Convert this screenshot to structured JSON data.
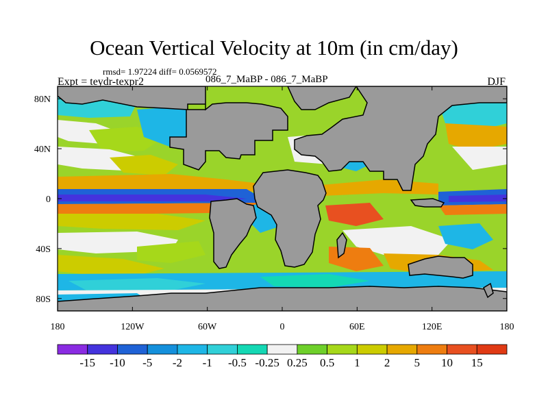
{
  "chart_data": {
    "type": "heatmap",
    "title": "Ocean Vertical Velocity at 10m (in cm/day)",
    "stats_text": "rmsd= 1.97224 diff= 0.0569572",
    "comparison": "086_7_MaBP - 086_7_MaBP",
    "experiment": "Expt = teydr-texpr2",
    "season": "DJF",
    "x_range": [
      -180,
      180
    ],
    "y_range": [
      -90,
      90
    ],
    "x_ticks": [
      "180",
      "120W",
      "60W",
      "0",
      "60E",
      "120E",
      "180"
    ],
    "y_ticks": [
      "80N",
      "40N",
      "0",
      "40S",
      "80S"
    ],
    "colorbar": {
      "labels": [
        "-15",
        "-10",
        "-5",
        "-2",
        "-1",
        "-0.5",
        "-0.25",
        "0.25",
        "0.5",
        "1",
        "2",
        "5",
        "10",
        "15"
      ],
      "colors": [
        "#8a2be2",
        "#4433dd",
        "#1f62d6",
        "#1490dc",
        "#1eb6e6",
        "#30d0d8",
        "#14d8b4",
        "#f2f2f2",
        "#6ed02a",
        "#a6d81a",
        "#cccc00",
        "#e6a800",
        "#ee7d10",
        "#e85020",
        "#e03a14"
      ]
    },
    "land_color": "#9a9a9a"
  }
}
